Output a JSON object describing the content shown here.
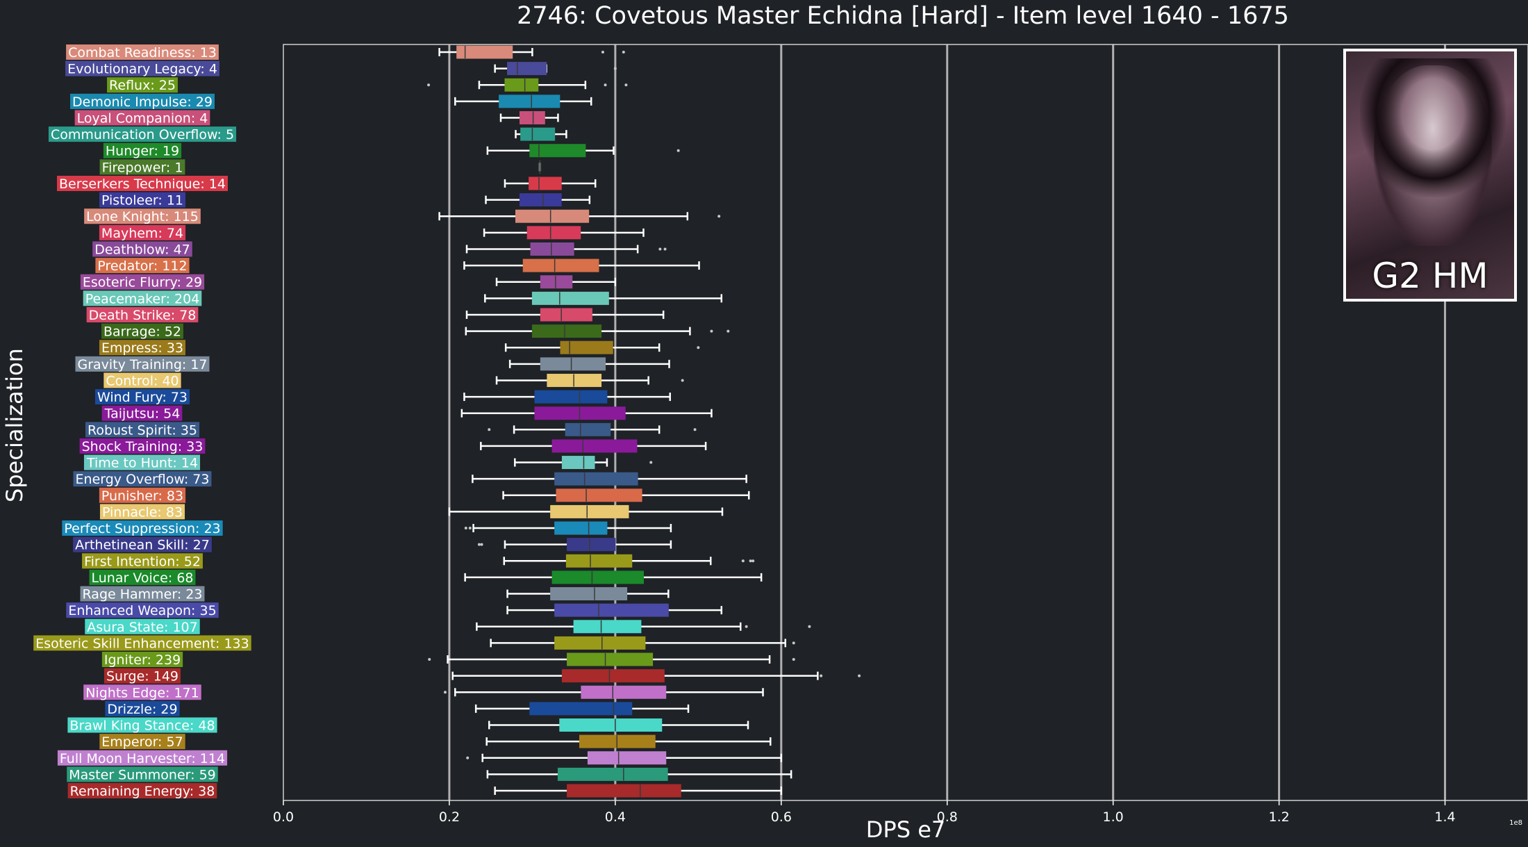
{
  "title": "2746: Covetous Master Echidna [Hard] - Item level 1640 - 1675",
  "boss_badge": {
    "text": "G2 HM"
  },
  "chart_data": {
    "type": "box",
    "title": "2746: Covetous Master Echidna [Hard] - Item level 1640 - 1675",
    "xlabel": "DPS e7",
    "ylabel": "Specialization",
    "x_offset_label": "1e8",
    "xlim": [
      0.0,
      1.5
    ],
    "xticks": [
      "0.0",
      "0.2",
      "0.4",
      "0.6",
      "0.8",
      "1.0",
      "1.2",
      "1.4"
    ],
    "grid": "vertical",
    "categories": [
      {
        "label": "Combat Readiness: 13",
        "color": "#d98a7a",
        "whisker_low": 0.188,
        "q1": 0.209,
        "median": 0.219,
        "q3": 0.276,
        "whisker_high": 0.3,
        "outliers": [
          0.385,
          0.41
        ]
      },
      {
        "label": "Evolutionary Legacy: 4",
        "color": "#4a4a9a",
        "whisker_low": 0.255,
        "q1": 0.27,
        "median": 0.282,
        "q3": 0.317,
        "whisker_high": 0.317,
        "outliers": [
          0.4
        ]
      },
      {
        "label": "Reflux: 25",
        "color": "#6a9a1a",
        "whisker_low": 0.236,
        "q1": 0.267,
        "median": 0.291,
        "q3": 0.307,
        "whisker_high": 0.364,
        "outliers": [
          0.175,
          0.388,
          0.413
        ]
      },
      {
        "label": "Demonic Impulse: 29",
        "color": "#1a8ab0",
        "whisker_low": 0.207,
        "q1": 0.26,
        "median": 0.299,
        "q3": 0.333,
        "whisker_high": 0.371,
        "outliers": []
      },
      {
        "label": "Loyal Companion: 4",
        "color": "#c8507a",
        "whisker_low": 0.262,
        "q1": 0.285,
        "median": 0.301,
        "q3": 0.315,
        "whisker_high": 0.331,
        "outliers": []
      },
      {
        "label": "Communication Overflow: 5",
        "color": "#2a9a8a",
        "whisker_low": 0.28,
        "q1": 0.286,
        "median": 0.3,
        "q3": 0.327,
        "whisker_high": 0.341,
        "outliers": []
      },
      {
        "label": "Hunger: 19",
        "color": "#1f8a2a",
        "whisker_low": 0.246,
        "q1": 0.297,
        "median": 0.308,
        "q3": 0.364,
        "whisker_high": 0.398,
        "outliers": [
          0.476
        ]
      },
      {
        "label": "Firepower: 1",
        "color": "#4a7a2a",
        "whisker_low": 0.309,
        "q1": 0.309,
        "median": 0.309,
        "q3": 0.309,
        "whisker_high": 0.309,
        "outliers": []
      },
      {
        "label": "Berserkers Technique: 14",
        "color": "#d83a4a",
        "whisker_low": 0.267,
        "q1": 0.296,
        "median": 0.308,
        "q3": 0.335,
        "whisker_high": 0.376,
        "outliers": []
      },
      {
        "label": "Pistoleer: 11",
        "color": "#3a3a9a",
        "whisker_low": 0.244,
        "q1": 0.285,
        "median": 0.313,
        "q3": 0.335,
        "whisker_high": 0.369,
        "outliers": []
      },
      {
        "label": "Lone Knight: 115",
        "color": "#d88a7a",
        "whisker_low": 0.188,
        "q1": 0.28,
        "median": 0.322,
        "q3": 0.368,
        "whisker_high": 0.487,
        "outliers": [
          0.525
        ]
      },
      {
        "label": "Mayhem: 74",
        "color": "#d83a5a",
        "whisker_low": 0.242,
        "q1": 0.294,
        "median": 0.322,
        "q3": 0.358,
        "whisker_high": 0.434,
        "outliers": []
      },
      {
        "label": "Deathblow: 47",
        "color": "#8a4a9a",
        "whisker_low": 0.221,
        "q1": 0.298,
        "median": 0.323,
        "q3": 0.35,
        "whisker_high": 0.427,
        "outliers": [
          0.454,
          0.46
        ]
      },
      {
        "label": "Predator: 112",
        "color": "#d8704a",
        "whisker_low": 0.218,
        "q1": 0.289,
        "median": 0.327,
        "q3": 0.38,
        "whisker_high": 0.501,
        "outliers": []
      },
      {
        "label": "Esoteric Flurry: 29",
        "color": "#9a4a9a",
        "whisker_low": 0.257,
        "q1": 0.31,
        "median": 0.328,
        "q3": 0.348,
        "whisker_high": 0.4,
        "outliers": []
      },
      {
        "label": "Peacemaker: 204",
        "color": "#6ac8b8",
        "whisker_low": 0.243,
        "q1": 0.3,
        "median": 0.333,
        "q3": 0.392,
        "whisker_high": 0.528,
        "outliers": []
      },
      {
        "label": "Death Strike: 78",
        "color": "#d84a6a",
        "whisker_low": 0.221,
        "q1": 0.31,
        "median": 0.335,
        "q3": 0.372,
        "whisker_high": 0.458,
        "outliers": []
      },
      {
        "label": "Barrage: 52",
        "color": "#3a6a1a",
        "whisker_low": 0.22,
        "q1": 0.3,
        "median": 0.339,
        "q3": 0.383,
        "whisker_high": 0.49,
        "outliers": [
          0.516,
          0.536
        ]
      },
      {
        "label": "Empress: 33",
        "color": "#9a7a1a",
        "whisker_low": 0.268,
        "q1": 0.334,
        "median": 0.345,
        "q3": 0.397,
        "whisker_high": 0.453,
        "outliers": [
          0.5
        ]
      },
      {
        "label": "Gravity Training: 17",
        "color": "#7a8a9a",
        "whisker_low": 0.273,
        "q1": 0.31,
        "median": 0.347,
        "q3": 0.388,
        "whisker_high": 0.465,
        "outliers": []
      },
      {
        "label": "Control: 40",
        "color": "#e8c870",
        "whisker_low": 0.257,
        "q1": 0.318,
        "median": 0.35,
        "q3": 0.383,
        "whisker_high": 0.44,
        "outliers": [
          0.481
        ]
      },
      {
        "label": "Wind Fury: 73",
        "color": "#1a4a9a",
        "whisker_low": 0.218,
        "q1": 0.303,
        "median": 0.357,
        "q3": 0.39,
        "whisker_high": 0.466,
        "outliers": []
      },
      {
        "label": "Taijutsu: 54",
        "color": "#8a1a9a",
        "whisker_low": 0.215,
        "q1": 0.303,
        "median": 0.357,
        "q3": 0.412,
        "whisker_high": 0.516,
        "outliers": []
      },
      {
        "label": "Robust Spirit: 35",
        "color": "#3a5a8a",
        "whisker_low": 0.278,
        "q1": 0.34,
        "median": 0.358,
        "q3": 0.394,
        "whisker_high": 0.453,
        "outliers": [
          0.248,
          0.496
        ]
      },
      {
        "label": "Shock Training: 33",
        "color": "#8a1a9a",
        "whisker_low": 0.238,
        "q1": 0.324,
        "median": 0.361,
        "q3": 0.426,
        "whisker_high": 0.509,
        "outliers": []
      },
      {
        "label": "Time to Hunt: 14",
        "color": "#6ac8c0",
        "whisker_low": 0.279,
        "q1": 0.336,
        "median": 0.362,
        "q3": 0.375,
        "whisker_high": 0.39,
        "outliers": [
          0.443
        ]
      },
      {
        "label": "Energy Overflow: 73",
        "color": "#3a5a8a",
        "whisker_low": 0.228,
        "q1": 0.327,
        "median": 0.363,
        "q3": 0.427,
        "whisker_high": 0.558,
        "outliers": []
      },
      {
        "label": "Punisher: 83",
        "color": "#d86a4a",
        "whisker_low": 0.265,
        "q1": 0.329,
        "median": 0.365,
        "q3": 0.432,
        "whisker_high": 0.561,
        "outliers": []
      },
      {
        "label": "Pinnacle: 83",
        "color": "#e8c870",
        "whisker_low": 0.2,
        "q1": 0.322,
        "median": 0.366,
        "q3": 0.416,
        "whisker_high": 0.529,
        "outliers": []
      },
      {
        "label": "Perfect Suppression: 23",
        "color": "#1a8ab8",
        "whisker_low": 0.229,
        "q1": 0.327,
        "median": 0.368,
        "q3": 0.39,
        "whisker_high": 0.467,
        "outliers": [
          0.22,
          0.225
        ]
      },
      {
        "label": "Arthetinean Skill: 27",
        "color": "#3a3a8a",
        "whisker_low": 0.267,
        "q1": 0.342,
        "median": 0.369,
        "q3": 0.4,
        "whisker_high": 0.467,
        "outliers": [
          0.236,
          0.239
        ]
      },
      {
        "label": "First Intention: 52",
        "color": "#9a9a1a",
        "whisker_low": 0.266,
        "q1": 0.341,
        "median": 0.37,
        "q3": 0.42,
        "whisker_high": 0.515,
        "outliers": [
          0.554,
          0.563,
          0.566
        ]
      },
      {
        "label": "Lunar Voice: 68",
        "color": "#1a8a2a",
        "whisker_low": 0.219,
        "q1": 0.324,
        "median": 0.372,
        "q3": 0.434,
        "whisker_high": 0.576,
        "outliers": []
      },
      {
        "label": "Rage Hammer: 23",
        "color": "#7a8a9a",
        "whisker_low": 0.27,
        "q1": 0.322,
        "median": 0.375,
        "q3": 0.414,
        "whisker_high": 0.464,
        "outliers": []
      },
      {
        "label": "Enhanced Weapon: 35",
        "color": "#4a4aa8",
        "whisker_low": 0.27,
        "q1": 0.327,
        "median": 0.38,
        "q3": 0.464,
        "whisker_high": 0.528,
        "outliers": []
      },
      {
        "label": "Asura State: 107",
        "color": "#4ad8c8",
        "whisker_low": 0.233,
        "q1": 0.35,
        "median": 0.383,
        "q3": 0.431,
        "whisker_high": 0.551,
        "outliers": [
          0.558,
          0.634
        ]
      },
      {
        "label": "Esoteric Skill Enhancement: 133",
        "color": "#9a9a1a",
        "whisker_low": 0.25,
        "q1": 0.327,
        "median": 0.384,
        "q3": 0.436,
        "whisker_high": 0.605,
        "outliers": [
          0.615
        ]
      },
      {
        "label": "Igniter: 239",
        "color": "#6a9a1a",
        "whisker_low": 0.198,
        "q1": 0.342,
        "median": 0.388,
        "q3": 0.445,
        "whisker_high": 0.586,
        "outliers": [
          0.176,
          0.615
        ]
      },
      {
        "label": "Surge: 149",
        "color": "#a82a2a",
        "whisker_low": 0.204,
        "q1": 0.336,
        "median": 0.393,
        "q3": 0.459,
        "whisker_high": 0.644,
        "outliers": [
          0.648,
          0.694
        ]
      },
      {
        "label": "Nights Edge: 171",
        "color": "#c070c8",
        "whisker_low": 0.207,
        "q1": 0.359,
        "median": 0.397,
        "q3": 0.461,
        "whisker_high": 0.578,
        "outliers": [
          0.195
        ]
      },
      {
        "label": "Drizzle: 29",
        "color": "#1a4a9a",
        "whisker_low": 0.232,
        "q1": 0.297,
        "median": 0.398,
        "q3": 0.42,
        "whisker_high": 0.488,
        "outliers": []
      },
      {
        "label": "Brawl King Stance: 48",
        "color": "#4ad8c8",
        "whisker_low": 0.248,
        "q1": 0.333,
        "median": 0.4,
        "q3": 0.456,
        "whisker_high": 0.56,
        "outliers": []
      },
      {
        "label": "Emperor: 57",
        "color": "#a8801a",
        "whisker_low": 0.245,
        "q1": 0.357,
        "median": 0.402,
        "q3": 0.448,
        "whisker_high": 0.587,
        "outliers": []
      },
      {
        "label": "Full Moon Harvester: 114",
        "color": "#c080d0",
        "whisker_low": 0.24,
        "q1": 0.367,
        "median": 0.404,
        "q3": 0.461,
        "whisker_high": 0.6,
        "outliers": [
          0.222
        ]
      },
      {
        "label": "Master Summoner: 59",
        "color": "#2a9a7a",
        "whisker_low": 0.246,
        "q1": 0.331,
        "median": 0.41,
        "q3": 0.463,
        "whisker_high": 0.612,
        "outliers": []
      },
      {
        "label": "Remaining Energy: 38",
        "color": "#a82a2a",
        "whisker_low": 0.255,
        "q1": 0.342,
        "median": 0.43,
        "q3": 0.479,
        "whisker_high": 0.6,
        "outliers": []
      }
    ]
  }
}
